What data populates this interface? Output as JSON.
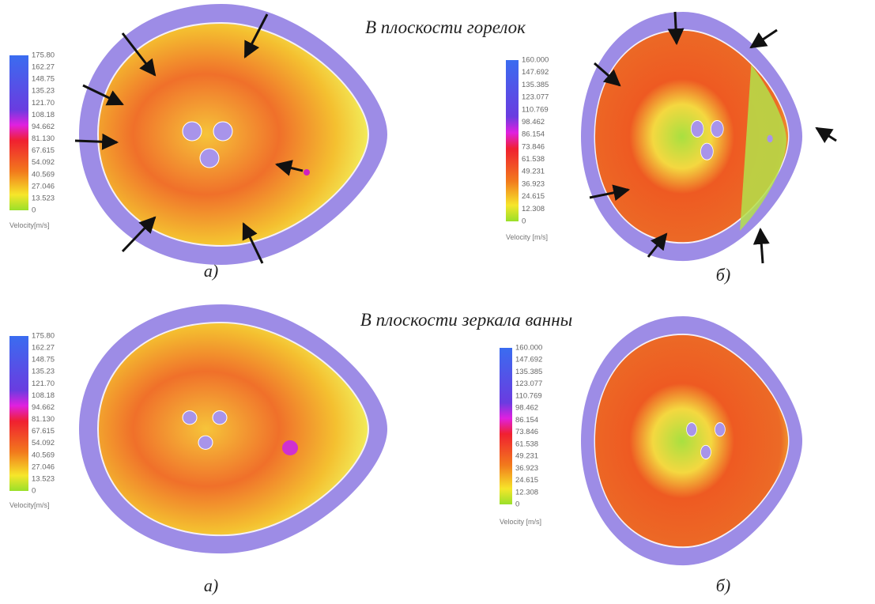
{
  "headings": {
    "burners": "В плоскости горелок",
    "bath": "В плоскости зеркала ванны"
  },
  "panels": [
    {
      "label": "а)",
      "legend": {
        "title": "Velocity[m/s]",
        "ticks": [
          "175.80",
          "162.27",
          "148.75",
          "135.23",
          "121.70",
          "108.18",
          "94.662",
          "81.130",
          "67.615",
          "54.092",
          "40.569",
          "27.046",
          "13.523",
          "0"
        ]
      }
    },
    {
      "label": "б)",
      "legend": {
        "title": "Velocity [m/s]",
        "ticks": [
          "160.000",
          "147.692",
          "135.385",
          "123.077",
          "110.769",
          "98.462",
          "86.154",
          "73.846",
          "61.538",
          "49.231",
          "36.923",
          "24.615",
          "12.308",
          "0"
        ]
      }
    },
    {
      "label": "а)",
      "legend": {
        "title": "Velocity[m/s]",
        "ticks": [
          "175.80",
          "162.27",
          "148.75",
          "135.23",
          "121.70",
          "108.18",
          "94.662",
          "81.130",
          "67.615",
          "54.092",
          "40.569",
          "27.046",
          "13.523",
          "0"
        ]
      }
    },
    {
      "label": "б)",
      "legend": {
        "title": "Velocity [m/s]",
        "ticks": [
          "160.000",
          "147.692",
          "135.385",
          "123.077",
          "110.769",
          "98.462",
          "86.154",
          "73.846",
          "61.538",
          "49.231",
          "36.923",
          "24.615",
          "12.308",
          "0"
        ]
      }
    }
  ]
}
